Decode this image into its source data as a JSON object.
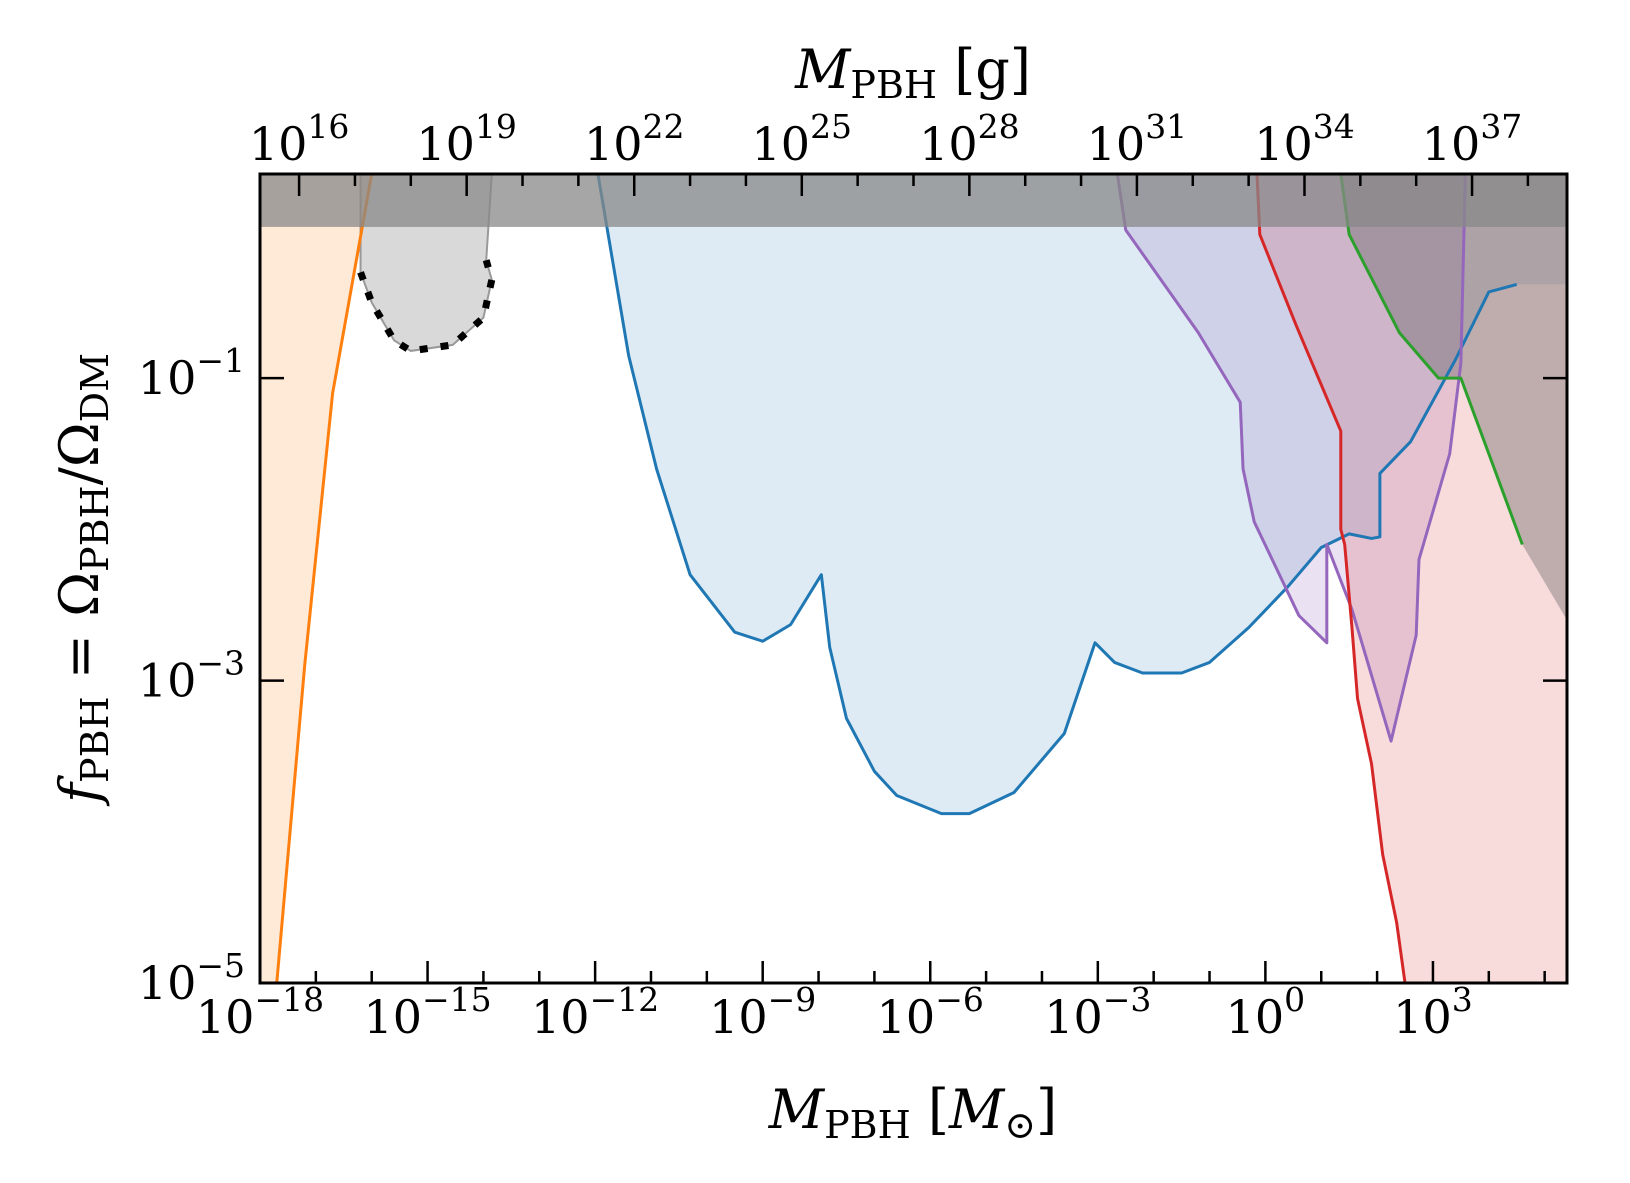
{
  "chart_data": {
    "type": "area",
    "title": "",
    "xscale": "log",
    "yscale": "log",
    "xlim_exp": [
      -18,
      5.4
    ],
    "ylim_exp": [
      -5,
      0
    ],
    "xlabel": {
      "symbol": "M",
      "sub": "PBH",
      "unit_open": "[",
      "unit_symbol": "M",
      "unit_sub": "⊙",
      "unit_close": "]"
    },
    "ylabel": {
      "symbol": "f",
      "sub": "PBH",
      "eq": " = ",
      "num": "Ω",
      "num_sub": "PBH",
      "slash": "/",
      "den": "Ω",
      "den_sub": "DM"
    },
    "top_xlabel": {
      "symbol": "M",
      "sub": "PBH",
      "unit": "[g]"
    },
    "x_ticks": [
      {
        "base": "10",
        "exp": "−18"
      },
      {
        "base": "10",
        "exp": "−15"
      },
      {
        "base": "10",
        "exp": "−12"
      },
      {
        "base": "10",
        "exp": "−9"
      },
      {
        "base": "10",
        "exp": "−6"
      },
      {
        "base": "10",
        "exp": "−3"
      },
      {
        "base": "10",
        "exp": "0"
      },
      {
        "base": "10",
        "exp": "3"
      }
    ],
    "x_tick_exps": [
      -18,
      -15,
      -12,
      -9,
      -6,
      -3,
      0,
      3
    ],
    "y_ticks": [
      {
        "base": "10",
        "exp": "−1"
      },
      {
        "base": "10",
        "exp": "−3"
      },
      {
        "base": "10",
        "exp": "−5"
      }
    ],
    "y_tick_exps": [
      -1,
      -3,
      -5
    ],
    "top_ticks": [
      {
        "base": "10",
        "exp": "16"
      },
      {
        "base": "10",
        "exp": "19"
      },
      {
        "base": "10",
        "exp": "22"
      },
      {
        "base": "10",
        "exp": "25"
      },
      {
        "base": "10",
        "exp": "28"
      },
      {
        "base": "10",
        "exp": "31"
      },
      {
        "base": "10",
        "exp": "34"
      },
      {
        "base": "10",
        "exp": "37"
      }
    ],
    "top_tick_exps": [
      16,
      19,
      22,
      25,
      28,
      31,
      34,
      37
    ],
    "grams_per_msun_exp": 33.3,
    "series": [
      {
        "color": "#ff7f0e",
        "fill": "#ff7f0e",
        "fill_opacity": 0.16,
        "style": "solid",
        "points": [
          [
            -18,
            0
          ],
          [
            -16.0,
            0
          ],
          [
            -16.7,
            -1.1
          ],
          [
            -17.2,
            -2.9
          ],
          [
            -17.7,
            -5.0
          ],
          [
            -18,
            -5.0
          ]
        ]
      },
      {
        "color": "#1f77b4",
        "fill": "#1f77b4",
        "fill_opacity": 0.15,
        "style": "solid",
        "points": [
          [
            -11.95,
            0
          ],
          [
            -11.4,
            -0.85
          ],
          [
            -10.9,
            -1.6
          ],
          [
            -10.3,
            -2.3
          ],
          [
            -9.5,
            -2.68
          ],
          [
            -9.0,
            -2.74
          ],
          [
            -8.5,
            -2.63
          ],
          [
            -7.95,
            -2.3
          ],
          [
            -7.8,
            -2.78
          ],
          [
            -7.5,
            -3.25
          ],
          [
            -7.0,
            -3.6
          ],
          [
            -6.6,
            -3.76
          ],
          [
            -5.8,
            -3.88
          ],
          [
            -5.3,
            -3.88
          ],
          [
            -4.5,
            -3.74
          ],
          [
            -3.6,
            -3.35
          ],
          [
            -3.05,
            -2.75
          ],
          [
            -2.7,
            -2.88
          ],
          [
            -2.2,
            -2.95
          ],
          [
            -1.5,
            -2.95
          ],
          [
            -1.0,
            -2.88
          ],
          [
            -0.3,
            -2.65
          ],
          [
            0.4,
            -2.38
          ],
          [
            1.0,
            -2.12
          ],
          [
            1.5,
            -2.03
          ],
          [
            1.9,
            -2.06
          ],
          [
            2.05,
            -2.05
          ],
          [
            2.05,
            -1.63
          ],
          [
            2.6,
            -1.42
          ],
          [
            3.4,
            -0.88
          ],
          [
            4.0,
            -0.43
          ],
          [
            4.5,
            -0.38
          ],
          [
            5.4,
            -0.38
          ],
          [
            5.4,
            0
          ]
        ]
      },
      {
        "color": "#9467bd",
        "fill": "#9467bd",
        "fill_opacity": 0.2,
        "style": "solid",
        "points": [
          [
            -2.65,
            0
          ],
          [
            -2.5,
            -0.02
          ],
          [
            -1.2,
            -0.7
          ],
          [
            -0.45,
            -1.16
          ],
          [
            -0.4,
            -1.6
          ],
          [
            -0.2,
            -1.95
          ],
          [
            0.6,
            -2.57
          ],
          [
            1.1,
            -2.75
          ],
          [
            1.1,
            -2.1
          ],
          [
            1.55,
            -2.53
          ],
          [
            2.25,
            -3.4
          ],
          [
            2.7,
            -2.7
          ],
          [
            2.75,
            -2.2
          ],
          [
            3.3,
            -1.5
          ],
          [
            3.5,
            -0.9
          ],
          [
            3.58,
            0
          ]
        ]
      },
      {
        "color": "#d62728",
        "fill": "#d62728",
        "fill_opacity": 0.16,
        "style": "solid",
        "points": [
          [
            -0.15,
            0
          ],
          [
            -0.1,
            -0.05
          ],
          [
            0.55,
            -0.65
          ],
          [
            1.35,
            -1.35
          ],
          [
            1.35,
            -2.0
          ],
          [
            1.42,
            -2.1
          ],
          [
            1.55,
            -2.65
          ],
          [
            1.65,
            -3.12
          ],
          [
            1.9,
            -3.55
          ],
          [
            2.1,
            -4.15
          ],
          [
            2.35,
            -4.6
          ],
          [
            2.5,
            -5.0
          ],
          [
            5.4,
            -5.0
          ],
          [
            5.4,
            0
          ]
        ]
      },
      {
        "color": "#2ca02c",
        "fill": "#555555",
        "fill_opacity": 0.35,
        "style": "solid",
        "points": [
          [
            1.35,
            0
          ],
          [
            1.5,
            -0.05
          ],
          [
            2.4,
            -0.7
          ],
          [
            3.1,
            -1.0
          ],
          [
            3.5,
            -1.0
          ],
          [
            4.0,
            -1.5
          ],
          [
            4.6,
            -2.1
          ],
          [
            5.4,
            -2.6
          ],
          [
            5.4,
            0
          ]
        ]
      },
      {
        "color": "#000000",
        "fill": "#000000",
        "fill_opacity": 0.15,
        "style": "dotted",
        "points": [
          [
            -16.2,
            -0.3
          ],
          [
            -16.0,
            -0.5
          ],
          [
            -15.6,
            -0.75
          ],
          [
            -15.3,
            -0.82
          ],
          [
            -14.55,
            -0.78
          ],
          [
            -14.0,
            -0.6
          ],
          [
            -13.85,
            -0.35
          ],
          [
            -13.95,
            -0.22
          ]
        ]
      }
    ],
    "gray_region": {
      "x_exp": [
        -16.2,
        -13.85
      ],
      "y_top": 0,
      "fill": "#000000",
      "fill_opacity": 0.15
    },
    "upper_band": {
      "y_exp": [
        0,
        0.35
      ],
      "fill": "#888888",
      "fill_opacity": 0.75
    }
  }
}
